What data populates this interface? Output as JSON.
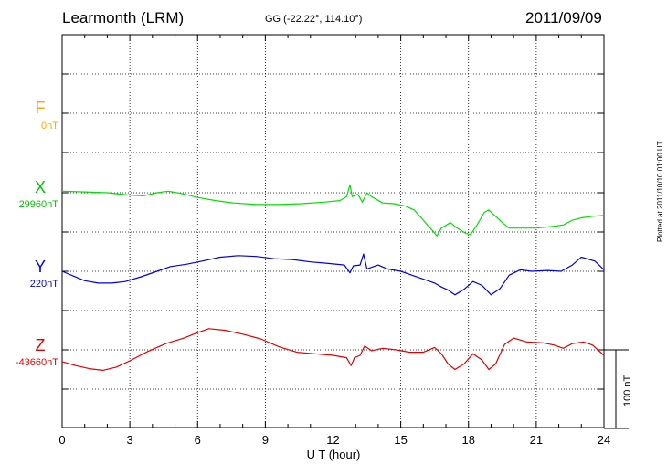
{
  "header": {
    "station": "Learmonth (LRM)",
    "coords": "GG (-22.22°, 114.10°)",
    "date": "2011/09/09"
  },
  "plotted_note": "Plotted at 2011/10/10 01:00 UT",
  "chart_data": {
    "type": "line",
    "xlabel": "U T (hour)",
    "xlim": [
      0,
      24
    ],
    "xticks": [
      "0",
      "3",
      "6",
      "9",
      "12",
      "15",
      "18",
      "21",
      "24"
    ],
    "scale_bar_label": "100 nT",
    "scale_bar_nt": 100,
    "grid": true,
    "series": [
      {
        "name": "F",
        "baseline_label": "0nT",
        "color": "#ffa500",
        "baseline_nt": 0,
        "points": []
      },
      {
        "name": "X",
        "baseline_label": "29960nT",
        "color": "#00e000",
        "baseline_nt": 29960,
        "points": [
          [
            0,
            29962
          ],
          [
            1,
            29961
          ],
          [
            2,
            29960
          ],
          [
            3,
            29957
          ],
          [
            3.6,
            29956
          ],
          [
            4.2,
            29960
          ],
          [
            4.7,
            29962
          ],
          [
            5.3,
            29959
          ],
          [
            6,
            29954
          ],
          [
            6.8,
            29950
          ],
          [
            7.6,
            29947
          ],
          [
            8.6,
            29945
          ],
          [
            9.6,
            29945
          ],
          [
            10.6,
            29946
          ],
          [
            11.6,
            29948
          ],
          [
            12.3,
            29950
          ],
          [
            12.6,
            29955
          ],
          [
            12.75,
            29970
          ],
          [
            12.85,
            29955
          ],
          [
            13.1,
            29958
          ],
          [
            13.3,
            29948
          ],
          [
            13.5,
            29960
          ],
          [
            13.7,
            29955
          ],
          [
            14.2,
            29947
          ],
          [
            14.7,
            29946
          ],
          [
            15.2,
            29943
          ],
          [
            15.6,
            29938
          ],
          [
            16,
            29925
          ],
          [
            16.4,
            29912
          ],
          [
            16.6,
            29905
          ],
          [
            16.8,
            29915
          ],
          [
            17.2,
            29922
          ],
          [
            17.5,
            29915
          ],
          [
            17.9,
            29908
          ],
          [
            18.1,
            29907
          ],
          [
            18.4,
            29920
          ],
          [
            18.7,
            29935
          ],
          [
            18.9,
            29938
          ],
          [
            19.2,
            29930
          ],
          [
            19.5,
            29922
          ],
          [
            19.8,
            29915
          ],
          [
            20.3,
            29915
          ],
          [
            21,
            29915
          ],
          [
            21.7,
            29917
          ],
          [
            22.2,
            29919
          ],
          [
            22.6,
            29925
          ],
          [
            23,
            29928
          ],
          [
            23.5,
            29930
          ],
          [
            24,
            29931
          ]
        ]
      },
      {
        "name": "Y",
        "baseline_label": "220nT",
        "color": "#0000e0",
        "baseline_nt": 220,
        "points": [
          [
            0,
            220
          ],
          [
            0.5,
            214
          ],
          [
            1,
            208
          ],
          [
            1.6,
            205
          ],
          [
            2.2,
            205
          ],
          [
            2.8,
            207
          ],
          [
            3.5,
            213
          ],
          [
            4.2,
            220
          ],
          [
            4.8,
            226
          ],
          [
            5.5,
            229
          ],
          [
            6.2,
            233
          ],
          [
            7,
            238
          ],
          [
            7.8,
            240
          ],
          [
            8.6,
            239
          ],
          [
            9.4,
            236
          ],
          [
            10.2,
            235
          ],
          [
            11,
            232
          ],
          [
            11.8,
            230
          ],
          [
            12.5,
            228
          ],
          [
            12.75,
            218
          ],
          [
            12.9,
            227
          ],
          [
            13.2,
            228
          ],
          [
            13.35,
            242
          ],
          [
            13.5,
            223
          ],
          [
            14,
            228
          ],
          [
            14.4,
            223
          ],
          [
            15,
            220
          ],
          [
            15.5,
            215
          ],
          [
            16,
            210
          ],
          [
            16.5,
            205
          ],
          [
            16.8,
            200
          ],
          [
            17.1,
            196
          ],
          [
            17.4,
            190
          ],
          [
            17.8,
            197
          ],
          [
            18.2,
            207
          ],
          [
            18.6,
            202
          ],
          [
            19,
            190
          ],
          [
            19.4,
            198
          ],
          [
            19.8,
            215
          ],
          [
            20.3,
            222
          ],
          [
            20.8,
            220
          ],
          [
            21.5,
            221
          ],
          [
            22.1,
            220
          ],
          [
            22.6,
            228
          ],
          [
            23,
            238
          ],
          [
            23.6,
            233
          ],
          [
            24,
            222
          ]
        ]
      },
      {
        "name": "Z",
        "baseline_label": "-43660nT",
        "color": "#e00000",
        "baseline_nt": -43660,
        "points": [
          [
            0,
            -43675
          ],
          [
            0.6,
            -43680
          ],
          [
            1.2,
            -43684
          ],
          [
            1.8,
            -43686
          ],
          [
            2.4,
            -43682
          ],
          [
            3,
            -43674
          ],
          [
            3.8,
            -43662
          ],
          [
            4.6,
            -43652
          ],
          [
            5.4,
            -43645
          ],
          [
            6,
            -43638
          ],
          [
            6.5,
            -43633
          ],
          [
            7.2,
            -43635
          ],
          [
            8,
            -43640
          ],
          [
            8.8,
            -43646
          ],
          [
            9.6,
            -43656
          ],
          [
            10.4,
            -43663
          ],
          [
            11.2,
            -43665
          ],
          [
            12,
            -43667
          ],
          [
            12.6,
            -43670
          ],
          [
            12.8,
            -43680
          ],
          [
            12.95,
            -43670
          ],
          [
            13.2,
            -43667
          ],
          [
            13.4,
            -43655
          ],
          [
            13.7,
            -43661
          ],
          [
            14.2,
            -43658
          ],
          [
            14.8,
            -43660
          ],
          [
            15.4,
            -43663
          ],
          [
            16,
            -43663
          ],
          [
            16.5,
            -43657
          ],
          [
            16.8,
            -43665
          ],
          [
            17.1,
            -43678
          ],
          [
            17.4,
            -43685
          ],
          [
            17.8,
            -43678
          ],
          [
            18.2,
            -43665
          ],
          [
            18.6,
            -43673
          ],
          [
            18.9,
            -43685
          ],
          [
            19.2,
            -43678
          ],
          [
            19.6,
            -43653
          ],
          [
            20,
            -43645
          ],
          [
            20.6,
            -43650
          ],
          [
            21.3,
            -43651
          ],
          [
            21.8,
            -43654
          ],
          [
            22.2,
            -43658
          ],
          [
            22.6,
            -43652
          ],
          [
            23.1,
            -43650
          ],
          [
            23.5,
            -43654
          ],
          [
            24,
            -43667
          ]
        ]
      }
    ]
  }
}
